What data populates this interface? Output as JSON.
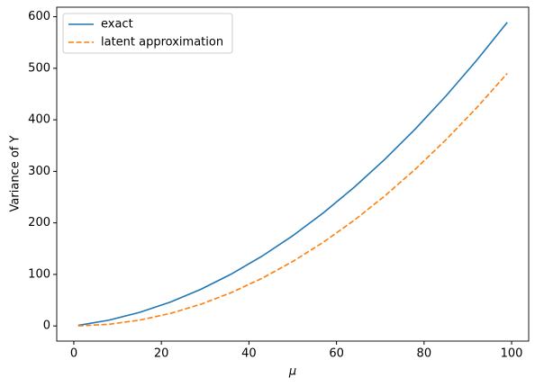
{
  "chart_data": {
    "type": "line",
    "xlabel": "μ",
    "ylabel": "Variance of Y",
    "x": [
      1,
      8,
      15,
      22,
      29,
      36,
      43,
      50,
      57,
      64,
      71,
      78,
      85,
      92,
      99
    ],
    "series": [
      {
        "name": "exact",
        "color": "#1f77b4",
        "linestyle": "solid",
        "values": [
          1.05,
          11.2,
          26.25,
          46.2,
          71.05,
          100.8,
          135.45,
          175,
          219.45,
          268.8,
          323.05,
          382.2,
          446.25,
          515.2,
          589.05
        ]
      },
      {
        "name": "latent approximation",
        "color": "#ff7f0e",
        "linestyle": "dashed",
        "values": [
          0.05,
          3.2,
          11.25,
          24.2,
          42.05,
          64.8,
          92.45,
          125,
          162.45,
          204.8,
          252.05,
          304.2,
          361.25,
          423.2,
          490.05
        ]
      }
    ],
    "xlim": [
      -3.9,
      103.9
    ],
    "xticks": [
      0,
      20,
      40,
      60,
      80,
      100
    ],
    "ylim": [
      -29.4,
      618.5
    ],
    "yticks": [
      0,
      100,
      200,
      300,
      400,
      500,
      600
    ],
    "grid": false,
    "legend": "upper left"
  }
}
